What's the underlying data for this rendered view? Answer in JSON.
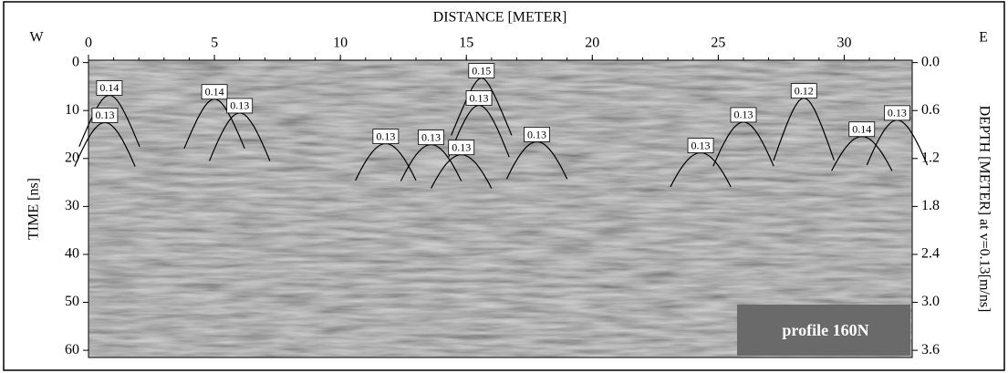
{
  "chart_data": {
    "type": "radargram",
    "title": "DISTANCE [METER]",
    "left_label": "W",
    "right_label": "E",
    "ylabel": "TIME [ns]",
    "y2label": "DEPTH [METER] at v=0.13[m/ns]",
    "profile_label": "profile 160N",
    "xlim": [
      0,
      32.7
    ],
    "xticks": [
      0,
      5,
      10,
      15,
      20,
      25,
      30
    ],
    "ylim": [
      -0.5,
      61.5
    ],
    "yticks": [
      0,
      10,
      20,
      30,
      40,
      50,
      60
    ],
    "y2lim": [
      -0.03,
      3.69
    ],
    "y2ticks": [
      {
        "value": 0,
        "label": "0.0"
      },
      {
        "value": 0.6,
        "label": "0.6"
      },
      {
        "value": 1.2,
        "label": "1.2"
      },
      {
        "value": 1.8,
        "label": "1.8"
      },
      {
        "value": 2.4,
        "label": "2.4"
      },
      {
        "value": 3.0,
        "label": "3.0"
      },
      {
        "value": 3.6,
        "label": "3.6"
      }
    ],
    "annotations": [
      {
        "x": 0.83,
        "y": 5.3,
        "value": 0.14
      },
      {
        "x": 0.65,
        "y": 11,
        "value": 0.13
      },
      {
        "x": 5.0,
        "y": 6.1,
        "value": 0.14
      },
      {
        "x": 6.0,
        "y": 9.0,
        "value": 0.13
      },
      {
        "x": 11.8,
        "y": 15.4,
        "value": 0.13
      },
      {
        "x": 15.6,
        "y": 1.7,
        "value": 0.15
      },
      {
        "x": 15.5,
        "y": 7.4,
        "value": 0.13
      },
      {
        "x": 13.6,
        "y": 15.6,
        "value": 0.13
      },
      {
        "x": 14.8,
        "y": 17.7,
        "value": 0.13
      },
      {
        "x": 17.8,
        "y": 15,
        "value": 0.13
      },
      {
        "x": 24.3,
        "y": 17.3,
        "value": 0.13
      },
      {
        "x": 26,
        "y": 10.9,
        "value": 0.13
      },
      {
        "x": 28.4,
        "y": 5.9,
        "value": 0.12
      },
      {
        "x": 30.7,
        "y": 13.9,
        "value": 0.14
      },
      {
        "x": 32.1,
        "y": 10.5,
        "value": 0.13
      }
    ]
  }
}
